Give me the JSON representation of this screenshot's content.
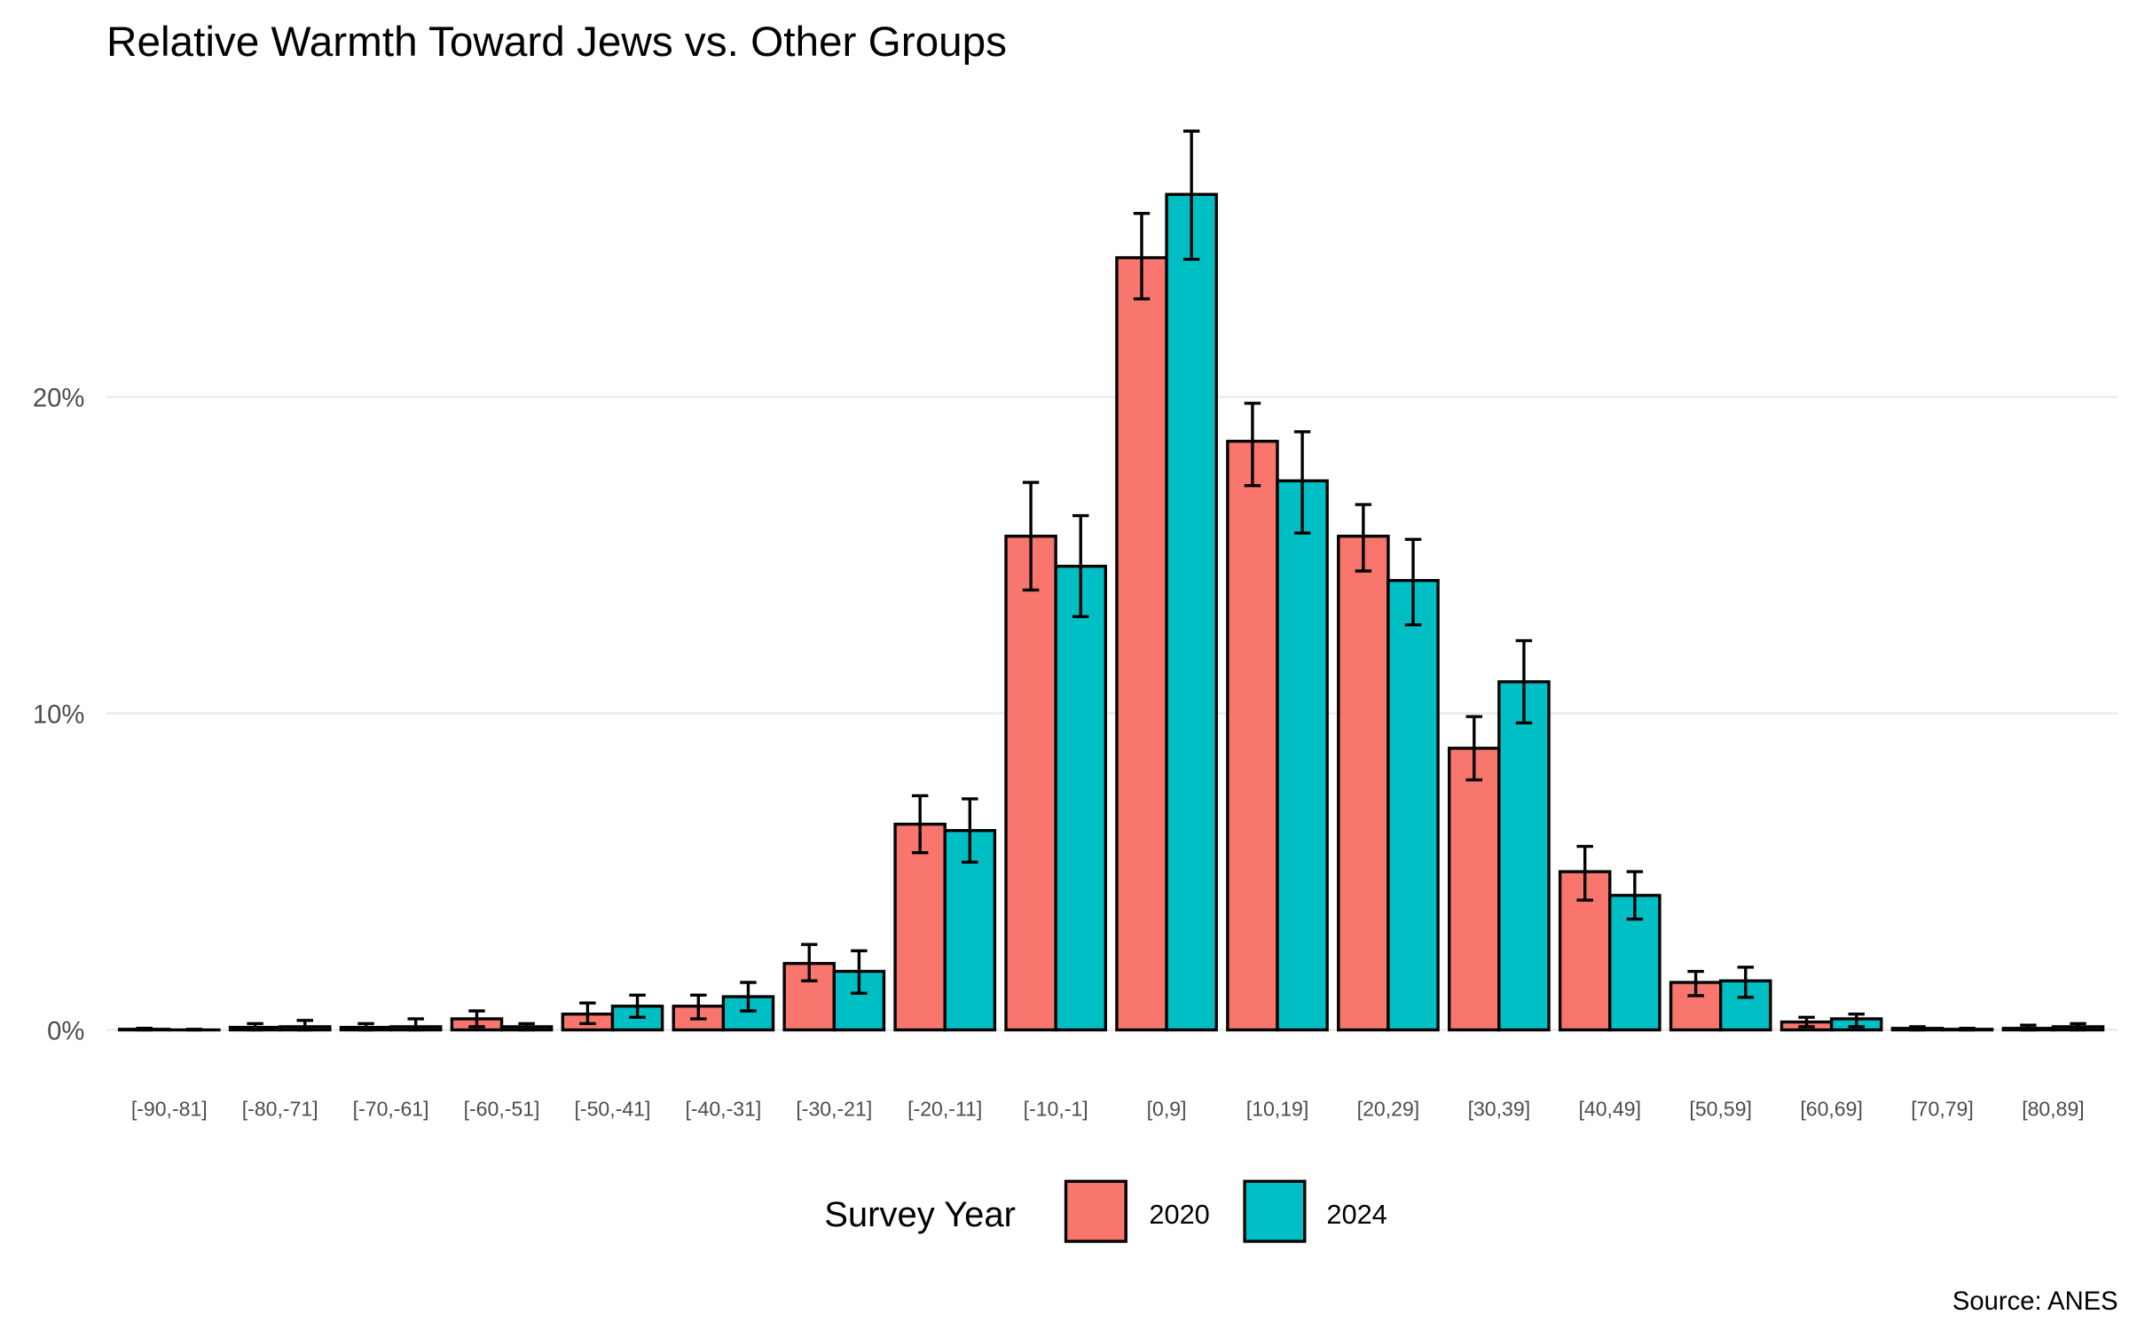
{
  "chart_data": {
    "type": "bar",
    "title": "Relative Warmth Toward Jews vs. Other Groups",
    "xlabel": "",
    "ylabel": "",
    "caption": "Source: ANES",
    "ylim": [
      0,
      29
    ],
    "yticks": [
      0,
      10,
      20
    ],
    "ytick_labels": [
      "0%",
      "10%",
      "20%"
    ],
    "grid": "horizontal major",
    "legend": {
      "title": "Survey Year",
      "position": "bottom"
    },
    "categories": [
      "[-90,-81]",
      "[-80,-71]",
      "[-70,-61]",
      "[-60,-51]",
      "[-50,-41]",
      "[-40,-31]",
      "[-30,-21]",
      "[-20,-11]",
      "[-10,-1]",
      "[0,9]",
      "[10,19]",
      "[20,29]",
      "[30,39]",
      "[40,49]",
      "[50,59]",
      "[60,69]",
      "[70,79]",
      "[80,89]"
    ],
    "series": [
      {
        "name": "2020",
        "color": "#F8766D",
        "values": [
          0.02,
          0.08,
          0.08,
          0.35,
          0.5,
          0.75,
          2.1,
          6.5,
          15.6,
          24.4,
          18.6,
          15.6,
          8.9,
          5.0,
          1.5,
          0.25,
          0.05,
          0.05
        ],
        "ci_low": [
          0,
          0,
          0,
          0.1,
          0.2,
          0.35,
          1.55,
          5.6,
          13.9,
          23.1,
          17.2,
          14.5,
          7.9,
          4.1,
          1.08,
          0.1,
          0,
          0
        ],
        "ci_high": [
          0.05,
          0.2,
          0.2,
          0.6,
          0.85,
          1.1,
          2.7,
          7.4,
          17.3,
          25.8,
          19.8,
          16.6,
          9.9,
          5.8,
          1.85,
          0.4,
          0.1,
          0.15
        ]
      },
      {
        "name": "2024",
        "color": "#00BFC4",
        "values": [
          0.0,
          0.1,
          0.1,
          0.1,
          0.75,
          1.05,
          1.85,
          6.3,
          14.65,
          26.4,
          17.35,
          14.2,
          11.0,
          4.25,
          1.55,
          0.35,
          0.02,
          0.1
        ],
        "ci_low": [
          0,
          0,
          0,
          0,
          0.4,
          0.6,
          1.16,
          5.3,
          13.06,
          24.35,
          15.7,
          12.8,
          9.7,
          3.5,
          1.03,
          0.1,
          0,
          0
        ],
        "ci_high": [
          0.02,
          0.3,
          0.35,
          0.2,
          1.1,
          1.5,
          2.5,
          7.3,
          16.25,
          28.4,
          18.9,
          15.5,
          12.3,
          5.0,
          1.98,
          0.5,
          0.05,
          0.2
        ]
      }
    ]
  }
}
